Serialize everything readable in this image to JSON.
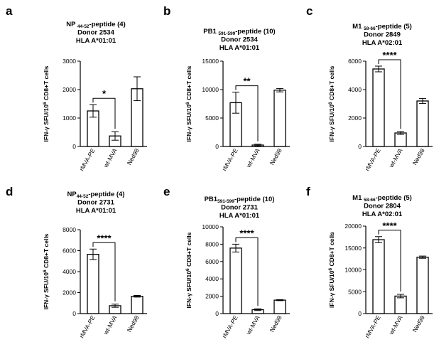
{
  "chart_data": [
    {
      "panel": "a",
      "type": "bar",
      "title_lines": [
        {
          "segments": [
            {
              "text": "NP ",
              "style": "normal"
            },
            {
              "text": "44-52",
              "style": "sub"
            },
            {
              "text": "-peptide (4)",
              "style": "normal"
            }
          ]
        },
        {
          "segments": [
            {
              "text": "Donor 2534",
              "style": "normal"
            }
          ]
        },
        {
          "segments": [
            {
              "text": "HLA A*01:01",
              "style": "normal"
            }
          ]
        }
      ],
      "ylabel": {
        "pre": "IFN-γ SFU/10",
        "sup": "6",
        "post": " CD8+T cells"
      },
      "ylim": [
        0,
        3000
      ],
      "yticks": [
        "0",
        "1000",
        "2000",
        "3000"
      ],
      "categories": [
        "rMVA-PE",
        "wt-MVA",
        "Ned98"
      ],
      "values": [
        1250,
        370,
        2030
      ],
      "errors": [
        220,
        150,
        420
      ],
      "significance": {
        "from": 0,
        "to": 1,
        "label": "*"
      }
    },
    {
      "panel": "b",
      "type": "bar",
      "title_lines": [
        {
          "segments": [
            {
              "text": "PB1 ",
              "style": "normal"
            },
            {
              "text": "591-599",
              "style": "sub"
            },
            {
              "text": "-peptide (10)",
              "style": "normal"
            }
          ]
        },
        {
          "segments": [
            {
              "text": "Donor 2534",
              "style": "normal"
            }
          ]
        },
        {
          "segments": [
            {
              "text": "HLA A*01:01",
              "style": "normal"
            }
          ]
        }
      ],
      "ylabel": {
        "pre": "IFN-γ SFU/10",
        "sup": "6",
        "post": " CD8+T cells"
      },
      "ylim": [
        0,
        15000
      ],
      "yticks": [
        "0",
        "5000",
        "10000",
        "15000"
      ],
      "categories": [
        "rMVA-PE",
        "wt-MVA",
        "Ned98"
      ],
      "values": [
        7700,
        250,
        9900
      ],
      "errors": [
        1850,
        150,
        300
      ],
      "significance": {
        "from": 0,
        "to": 1,
        "label": "**"
      }
    },
    {
      "panel": "c",
      "type": "bar",
      "title_lines": [
        {
          "segments": [
            {
              "text": "M1 ",
              "style": "normal"
            },
            {
              "text": "58-66",
              "style": "sub"
            },
            {
              "text": "-peptide (5)",
              "style": "normal"
            }
          ]
        },
        {
          "segments": [
            {
              "text": "Donor 2849",
              "style": "normal"
            }
          ]
        },
        {
          "segments": [
            {
              "text": "HLA A*02:01",
              "style": "normal"
            }
          ]
        }
      ],
      "ylabel": {
        "pre": "IFN-γ SFU/10",
        "sup": "6",
        "post": " CD8+T cells"
      },
      "ylim": [
        0,
        6000
      ],
      "yticks": [
        "0",
        "2000",
        "4000",
        "6000"
      ],
      "categories": [
        "rMVA-PE",
        "wt-MVA",
        "Ned98"
      ],
      "values": [
        5450,
        950,
        3200
      ],
      "errors": [
        200,
        100,
        180
      ],
      "significance": {
        "from": 0,
        "to": 1,
        "label": "****"
      }
    },
    {
      "panel": "d",
      "type": "bar",
      "title_lines": [
        {
          "segments": [
            {
              "text": "NP",
              "style": "normal"
            },
            {
              "text": "44-52",
              "style": "sub"
            },
            {
              "text": "-peptide (4)",
              "style": "normal"
            }
          ]
        },
        {
          "segments": [
            {
              "text": "Donor 2731",
              "style": "normal"
            }
          ]
        },
        {
          "segments": [
            {
              "text": "HLA A*01:01",
              "style": "normal"
            }
          ]
        }
      ],
      "ylabel": {
        "pre": "IFN-γ SFU/10",
        "sup": "6",
        "post": " CD8+T cells"
      },
      "ylim": [
        0,
        8000
      ],
      "yticks": [
        "0",
        "2000",
        "4000",
        "6000",
        "8000"
      ],
      "categories": [
        "rMVA-PE",
        "wt-MVA",
        "Ned98"
      ],
      "values": [
        5650,
        750,
        1650
      ],
      "errors": [
        500,
        150,
        80
      ],
      "significance": {
        "from": 0,
        "to": 1,
        "label": "****"
      }
    },
    {
      "panel": "e",
      "type": "bar",
      "title_lines": [
        {
          "segments": [
            {
              "text": "PB1",
              "style": "normal"
            },
            {
              "text": "591-599",
              "style": "sub"
            },
            {
              "text": "-peptide (10)",
              "style": "normal"
            }
          ]
        },
        {
          "segments": [
            {
              "text": "Donor 2731",
              "style": "normal"
            }
          ]
        },
        {
          "segments": [
            {
              "text": "HLA A*01:01",
              "style": "normal"
            }
          ]
        }
      ],
      "ylabel": {
        "pre": "IFN-γ SFU/10",
        "sup": "6",
        "post": " CD8+T cells"
      },
      "ylim": [
        0,
        10000
      ],
      "yticks": [
        "0",
        "2000",
        "4000",
        "6000",
        "8000",
        "10000"
      ],
      "categories": [
        "rMVA-PE",
        "wt-MVA",
        "Ned98"
      ],
      "values": [
        7550,
        450,
        1550
      ],
      "errors": [
        450,
        100,
        60
      ],
      "significance": {
        "from": 0,
        "to": 1,
        "label": "****"
      }
    },
    {
      "panel": "f",
      "type": "bar",
      "title_lines": [
        {
          "segments": [
            {
              "text": "M1 ",
              "style": "normal"
            },
            {
              "text": "58-66",
              "style": "sub"
            },
            {
              "text": "-peptide (5)",
              "style": "normal"
            }
          ]
        },
        {
          "segments": [
            {
              "text": "Donor 2804",
              "style": "normal"
            }
          ]
        },
        {
          "segments": [
            {
              "text": "HLA A*02:01",
              "style": "normal"
            }
          ]
        }
      ],
      "ylabel": {
        "pre": "IFN-γ SFU/10",
        "sup": "6",
        "post": " CD8+T cells"
      },
      "ylim": [
        0,
        20000
      ],
      "yticks": [
        "0",
        "5000",
        "10000",
        "15000",
        "20000"
      ],
      "categories": [
        "rMVA-PE",
        "wt-MVA",
        "Ned98"
      ],
      "values": [
        16900,
        4000,
        12900
      ],
      "errors": [
        700,
        400,
        250
      ],
      "significance": {
        "from": 0,
        "to": 1,
        "label": "****"
      }
    }
  ]
}
